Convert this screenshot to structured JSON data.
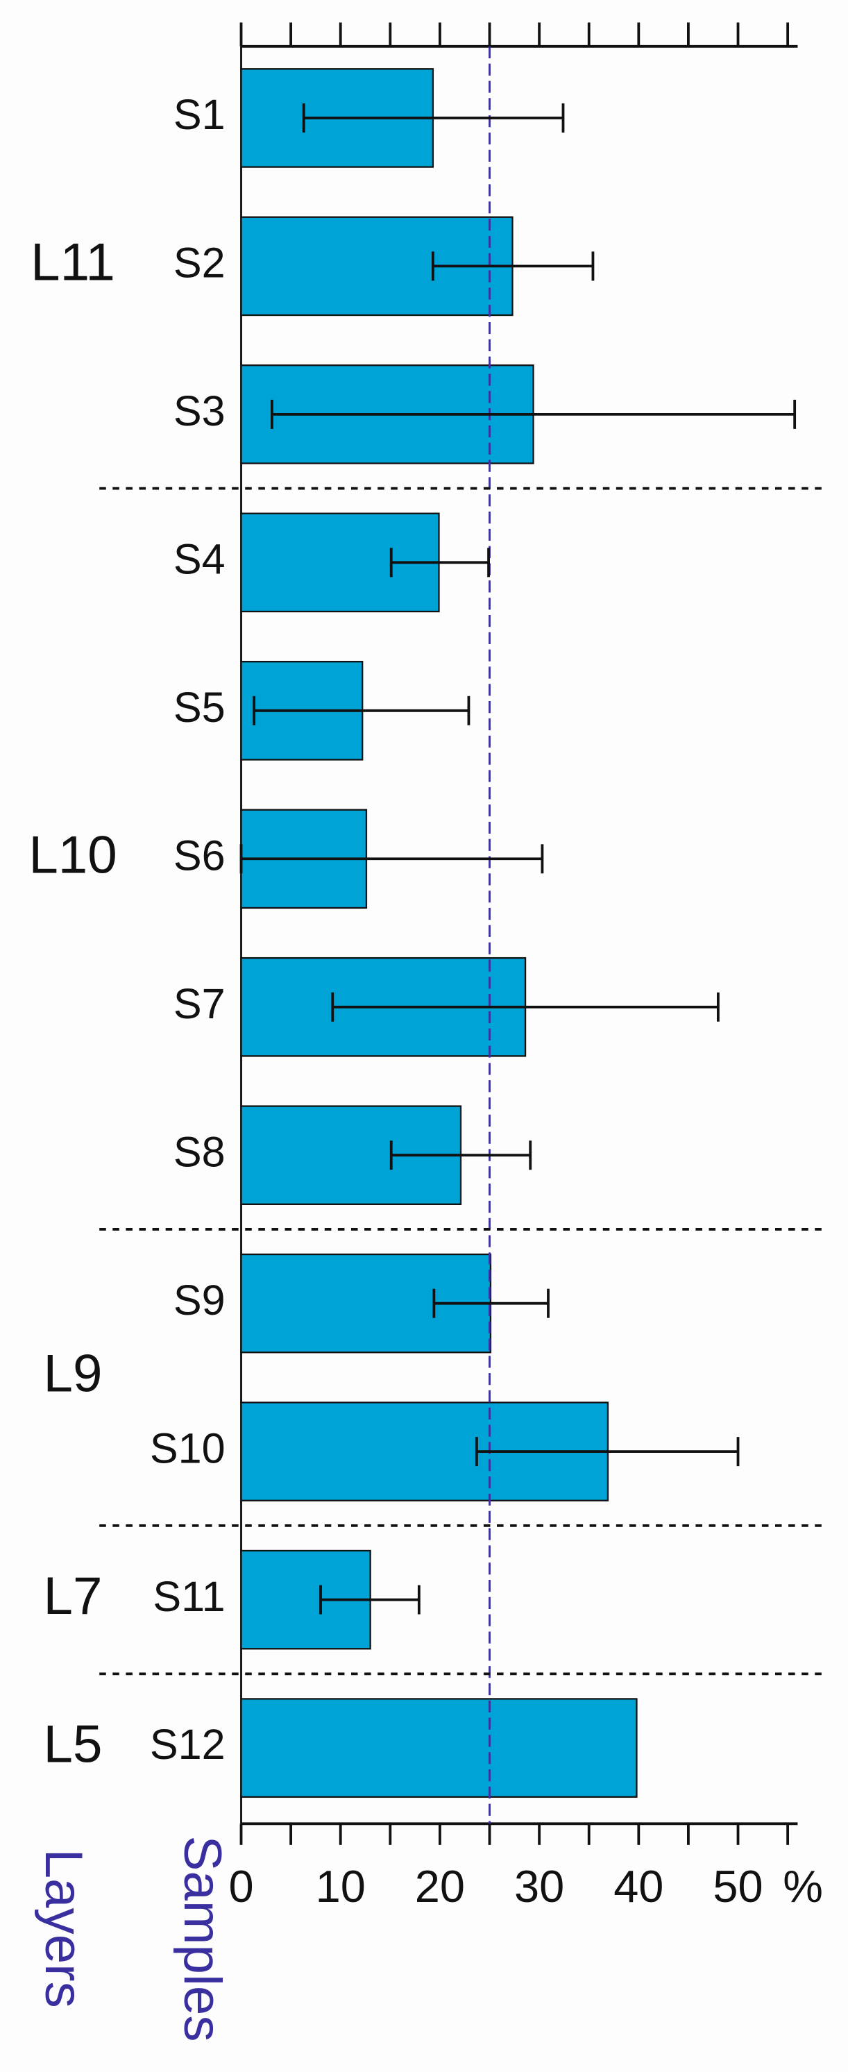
{
  "chart_data": {
    "type": "bar",
    "orientation": "horizontal",
    "categories": [
      "S1",
      "S2",
      "S3",
      "S4",
      "S5",
      "S6",
      "S7",
      "S8",
      "S9",
      "S10",
      "S11",
      "S12"
    ],
    "values": [
      19.3,
      27.3,
      29.4,
      19.9,
      12.2,
      12.6,
      28.6,
      22.1,
      25.1,
      36.9,
      13.0,
      39.8
    ],
    "ci_low": [
      6.3,
      19.3,
      3.1,
      15.1,
      1.3,
      0,
      9.2,
      15.1,
      19.4,
      23.7,
      8.0,
      null
    ],
    "ci_high": [
      32.4,
      35.4,
      55.7,
      24.9,
      22.9,
      30.3,
      48.0,
      29.1,
      30.9,
      50.0,
      17.9,
      null
    ],
    "color": "#00a3d6",
    "layers": [
      {
        "name": "L11",
        "rows": 3
      },
      {
        "name": "L10",
        "rows": 5
      },
      {
        "name": "L9",
        "rows": 2
      },
      {
        "name": "L7",
        "rows": 1
      },
      {
        "name": "L5",
        "rows": 1
      }
    ],
    "xlim": [
      0,
      56
    ],
    "xticks": [
      0,
      10,
      20,
      30,
      40,
      50
    ],
    "minor_xticks": [
      5,
      15,
      25,
      35,
      45,
      55
    ],
    "x_unit": "%",
    "reference_line": 25,
    "reference_color": "#3a2f9e",
    "layers_label": "Layers",
    "samples_label": "Samples",
    "label_color": "#3a2f9e"
  }
}
